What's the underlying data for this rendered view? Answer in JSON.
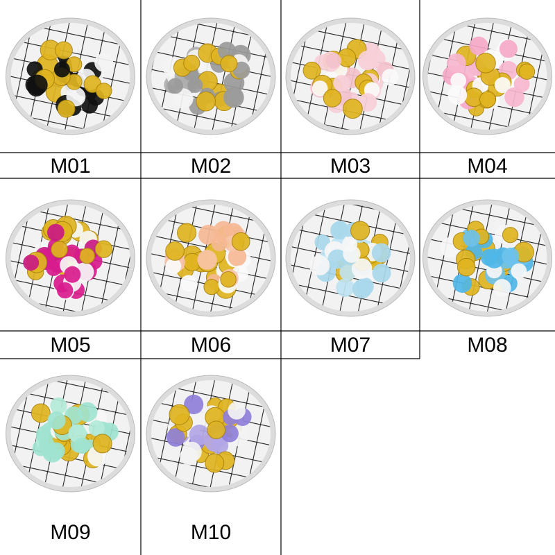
{
  "labels": [
    "M01",
    "M02",
    "M03",
    "M04",
    "M05",
    "M06",
    "M07",
    "M08",
    "M09",
    "M10"
  ]
}
